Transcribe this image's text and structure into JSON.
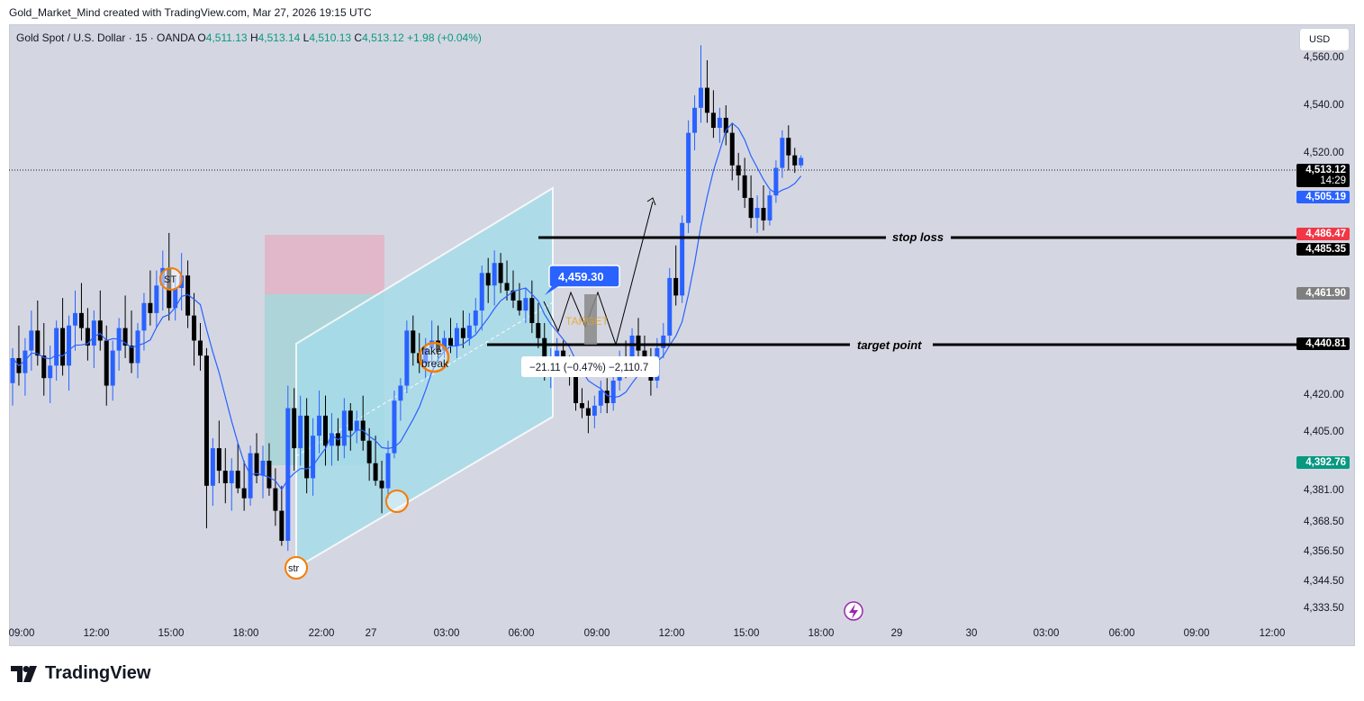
{
  "header": {
    "credit": "Gold_Market_Mind created with TradingView.com, Mar 27, 2026 19:15 UTC"
  },
  "legend": {
    "symbol": "Gold Spot / U.S. Dollar · 15 · OANDA",
    "o_label": "O",
    "o": "4,511.13",
    "h_label": "H",
    "h": "4,513.14",
    "l_label": "L",
    "l": "4,510.13",
    "c_label": "C",
    "c": "4,513.12",
    "change": "+1.98 (+0.04%)"
  },
  "currency_button": "USD",
  "price_axis": [
    "4,560.00",
    "4,540.00",
    "4,520.00",
    "4,420.00",
    "4,405.00",
    "4,381.00",
    "4,368.50",
    "4,356.50",
    "4,344.50",
    "4,333.50"
  ],
  "price_labels": {
    "last": "4,513.12",
    "countdown": "14:29",
    "ma": "4,505.19",
    "red": "4,486.47",
    "stop": "4,485.35",
    "grey": "4,461.90",
    "target": "4,440.81",
    "green": "4,392.76"
  },
  "time_axis": [
    "09:00",
    "12:00",
    "15:00",
    "18:00",
    "22:00",
    "27",
    "03:00",
    "06:00",
    "09:00",
    "12:00",
    "15:00",
    "18:00",
    "29",
    "30",
    "03:00",
    "06:00",
    "09:00",
    "12:00"
  ],
  "annotations": {
    "stop_loss": "stop loss",
    "target_point": "target point",
    "price_callout": "4,459.30",
    "measure": "−21.11 (−0.47%) −2,110.7",
    "target_text": "TARGET",
    "fake_break_1": "fake",
    "fake_break_2": "break",
    "st": "ST",
    "str": "str"
  },
  "footer": {
    "brand": "TradingView"
  },
  "colors": {
    "up": "#2962ff",
    "down": "#000000",
    "ma": "#2962ff",
    "channel": "#a5dcea",
    "stop_zone": "#e6b6c4",
    "target_zone": "#a9d8d8"
  },
  "chart_data": {
    "type": "candlestick",
    "symbol": "XAUUSD",
    "interval": "15",
    "ylim": [
      4328,
      4566
    ],
    "candles": [
      {
        "o": 4423,
        "h": 4437,
        "l": 4414,
        "c": 4433
      },
      {
        "o": 4433,
        "h": 4446,
        "l": 4422,
        "c": 4427
      },
      {
        "o": 4427,
        "h": 4441,
        "l": 4418,
        "c": 4436
      },
      {
        "o": 4436,
        "h": 4452,
        "l": 4428,
        "c": 4444
      },
      {
        "o": 4444,
        "h": 4456,
        "l": 4430,
        "c": 4434
      },
      {
        "o": 4434,
        "h": 4447,
        "l": 4418,
        "c": 4425
      },
      {
        "o": 4425,
        "h": 4438,
        "l": 4415,
        "c": 4430
      },
      {
        "o": 4430,
        "h": 4448,
        "l": 4424,
        "c": 4445
      },
      {
        "o": 4445,
        "h": 4457,
        "l": 4426,
        "c": 4430
      },
      {
        "o": 4430,
        "h": 4450,
        "l": 4420,
        "c": 4446
      },
      {
        "o": 4446,
        "h": 4460,
        "l": 4436,
        "c": 4451
      },
      {
        "o": 4451,
        "h": 4463,
        "l": 4440,
        "c": 4445
      },
      {
        "o": 4445,
        "h": 4453,
        "l": 4432,
        "c": 4438
      },
      {
        "o": 4438,
        "h": 4452,
        "l": 4429,
        "c": 4448
      },
      {
        "o": 4448,
        "h": 4460,
        "l": 4436,
        "c": 4440
      },
      {
        "o": 4440,
        "h": 4446,
        "l": 4414,
        "c": 4422
      },
      {
        "o": 4422,
        "h": 4440,
        "l": 4416,
        "c": 4436
      },
      {
        "o": 4436,
        "h": 4449,
        "l": 4428,
        "c": 4445
      },
      {
        "o": 4445,
        "h": 4458,
        "l": 4433,
        "c": 4438
      },
      {
        "o": 4438,
        "h": 4452,
        "l": 4427,
        "c": 4431
      },
      {
        "o": 4431,
        "h": 4447,
        "l": 4425,
        "c": 4444
      },
      {
        "o": 4444,
        "h": 4459,
        "l": 4436,
        "c": 4455
      },
      {
        "o": 4455,
        "h": 4468,
        "l": 4446,
        "c": 4451
      },
      {
        "o": 4451,
        "h": 4468,
        "l": 4445,
        "c": 4462
      },
      {
        "o": 4462,
        "h": 4476,
        "l": 4452,
        "c": 4469
      },
      {
        "o": 4469,
        "h": 4483,
        "l": 4448,
        "c": 4453
      },
      {
        "o": 4453,
        "h": 4465,
        "l": 4448,
        "c": 4461
      },
      {
        "o": 4461,
        "h": 4475,
        "l": 4452,
        "c": 4466
      },
      {
        "o": 4466,
        "h": 4472,
        "l": 4445,
        "c": 4450
      },
      {
        "o": 4450,
        "h": 4459,
        "l": 4430,
        "c": 4440
      },
      {
        "o": 4440,
        "h": 4447,
        "l": 4428,
        "c": 4434
      },
      {
        "o": 4434,
        "h": 4437,
        "l": 4365,
        "c": 4382
      },
      {
        "o": 4382,
        "h": 4401,
        "l": 4374,
        "c": 4397
      },
      {
        "o": 4397,
        "h": 4408,
        "l": 4383,
        "c": 4388
      },
      {
        "o": 4388,
        "h": 4397,
        "l": 4375,
        "c": 4383
      },
      {
        "o": 4383,
        "h": 4393,
        "l": 4372,
        "c": 4388
      },
      {
        "o": 4388,
        "h": 4399,
        "l": 4379,
        "c": 4381
      },
      {
        "o": 4381,
        "h": 4392,
        "l": 4372,
        "c": 4377
      },
      {
        "o": 4377,
        "h": 4398,
        "l": 4374,
        "c": 4395
      },
      {
        "o": 4395,
        "h": 4403,
        "l": 4383,
        "c": 4386
      },
      {
        "o": 4386,
        "h": 4398,
        "l": 4377,
        "c": 4392
      },
      {
        "o": 4392,
        "h": 4399,
        "l": 4378,
        "c": 4381
      },
      {
        "o": 4381,
        "h": 4389,
        "l": 4366,
        "c": 4372
      },
      {
        "o": 4372,
        "h": 4382,
        "l": 4358,
        "c": 4360
      },
      {
        "o": 4360,
        "h": 4422,
        "l": 4356,
        "c": 4413
      },
      {
        "o": 4413,
        "h": 4421,
        "l": 4388,
        "c": 4397
      },
      {
        "o": 4397,
        "h": 4418,
        "l": 4390,
        "c": 4410
      },
      {
        "o": 4410,
        "h": 4417,
        "l": 4379,
        "c": 4385
      },
      {
        "o": 4385,
        "h": 4409,
        "l": 4378,
        "c": 4402
      },
      {
        "o": 4402,
        "h": 4420,
        "l": 4395,
        "c": 4410
      },
      {
        "o": 4410,
        "h": 4418,
        "l": 4390,
        "c": 4398
      },
      {
        "o": 4398,
        "h": 4411,
        "l": 4390,
        "c": 4403
      },
      {
        "o": 4403,
        "h": 4409,
        "l": 4392,
        "c": 4398
      },
      {
        "o": 4398,
        "h": 4417,
        "l": 4393,
        "c": 4412
      },
      {
        "o": 4412,
        "h": 4415,
        "l": 4396,
        "c": 4404
      },
      {
        "o": 4404,
        "h": 4412,
        "l": 4399,
        "c": 4408
      },
      {
        "o": 4408,
        "h": 4418,
        "l": 4396,
        "c": 4400
      },
      {
        "o": 4400,
        "h": 4405,
        "l": 4384,
        "c": 4391
      },
      {
        "o": 4391,
        "h": 4402,
        "l": 4382,
        "c": 4384
      },
      {
        "o": 4384,
        "h": 4392,
        "l": 4371,
        "c": 4381
      },
      {
        "o": 4381,
        "h": 4400,
        "l": 4377,
        "c": 4395
      },
      {
        "o": 4395,
        "h": 4420,
        "l": 4393,
        "c": 4416
      },
      {
        "o": 4416,
        "h": 4425,
        "l": 4408,
        "c": 4422
      },
      {
        "o": 4422,
        "h": 4448,
        "l": 4419,
        "c": 4444
      },
      {
        "o": 4444,
        "h": 4450,
        "l": 4430,
        "c": 4435
      },
      {
        "o": 4435,
        "h": 4443,
        "l": 4427,
        "c": 4431
      },
      {
        "o": 4431,
        "h": 4441,
        "l": 4425,
        "c": 4437
      },
      {
        "o": 4437,
        "h": 4448,
        "l": 4430,
        "c": 4440
      },
      {
        "o": 4440,
        "h": 4446,
        "l": 4432,
        "c": 4436
      },
      {
        "o": 4436,
        "h": 4444,
        "l": 4433,
        "c": 4441
      },
      {
        "o": 4441,
        "h": 4449,
        "l": 4435,
        "c": 4438
      },
      {
        "o": 4438,
        "h": 4447,
        "l": 4433,
        "c": 4445
      },
      {
        "o": 4445,
        "h": 4452,
        "l": 4437,
        "c": 4441
      },
      {
        "o": 4441,
        "h": 4451,
        "l": 4438,
        "c": 4446
      },
      {
        "o": 4446,
        "h": 4457,
        "l": 4443,
        "c": 4452
      },
      {
        "o": 4452,
        "h": 4470,
        "l": 4444,
        "c": 4467
      },
      {
        "o": 4467,
        "h": 4473,
        "l": 4455,
        "c": 4462
      },
      {
        "o": 4462,
        "h": 4476,
        "l": 4454,
        "c": 4471
      },
      {
        "o": 4471,
        "h": 4475,
        "l": 4459,
        "c": 4463
      },
      {
        "o": 4463,
        "h": 4472,
        "l": 4456,
        "c": 4460
      },
      {
        "o": 4460,
        "h": 4468,
        "l": 4453,
        "c": 4456
      },
      {
        "o": 4456,
        "h": 4463,
        "l": 4450,
        "c": 4452
      },
      {
        "o": 4452,
        "h": 4461,
        "l": 4447,
        "c": 4457
      },
      {
        "o": 4457,
        "h": 4464,
        "l": 4443,
        "c": 4447
      },
      {
        "o": 4447,
        "h": 4455,
        "l": 4437,
        "c": 4441
      },
      {
        "o": 4441,
        "h": 4447,
        "l": 4424,
        "c": 4428
      },
      {
        "o": 4428,
        "h": 4437,
        "l": 4421,
        "c": 4432
      },
      {
        "o": 4432,
        "h": 4441,
        "l": 4428,
        "c": 4436
      },
      {
        "o": 4436,
        "h": 4440,
        "l": 4427,
        "c": 4431
      },
      {
        "o": 4431,
        "h": 4434,
        "l": 4422,
        "c": 4427
      },
      {
        "o": 4427,
        "h": 4431,
        "l": 4412,
        "c": 4415
      },
      {
        "o": 4415,
        "h": 4421,
        "l": 4409,
        "c": 4413
      },
      {
        "o": 4413,
        "h": 4416,
        "l": 4403,
        "c": 4410
      },
      {
        "o": 4410,
        "h": 4418,
        "l": 4405,
        "c": 4414
      },
      {
        "o": 4414,
        "h": 4424,
        "l": 4411,
        "c": 4420
      },
      {
        "o": 4420,
        "h": 4425,
        "l": 4411,
        "c": 4415
      },
      {
        "o": 4415,
        "h": 4428,
        "l": 4412,
        "c": 4424
      },
      {
        "o": 4424,
        "h": 4436,
        "l": 4420,
        "c": 4431
      },
      {
        "o": 4431,
        "h": 4440,
        "l": 4425,
        "c": 4428
      },
      {
        "o": 4428,
        "h": 4445,
        "l": 4426,
        "c": 4442
      },
      {
        "o": 4442,
        "h": 4449,
        "l": 4432,
        "c": 4436
      },
      {
        "o": 4436,
        "h": 4442,
        "l": 4427,
        "c": 4431
      },
      {
        "o": 4431,
        "h": 4437,
        "l": 4418,
        "c": 4424
      },
      {
        "o": 4424,
        "h": 4441,
        "l": 4421,
        "c": 4437
      },
      {
        "o": 4437,
        "h": 4447,
        "l": 4433,
        "c": 4442
      },
      {
        "o": 4442,
        "h": 4469,
        "l": 4439,
        "c": 4465
      },
      {
        "o": 4465,
        "h": 4478,
        "l": 4454,
        "c": 4458
      },
      {
        "o": 4458,
        "h": 4490,
        "l": 4455,
        "c": 4487
      },
      {
        "o": 4487,
        "h": 4528,
        "l": 4483,
        "c": 4523
      },
      {
        "o": 4523,
        "h": 4538,
        "l": 4516,
        "c": 4533
      },
      {
        "o": 4533,
        "h": 4558,
        "l": 4527,
        "c": 4541
      },
      {
        "o": 4541,
        "h": 4552,
        "l": 4527,
        "c": 4531
      },
      {
        "o": 4531,
        "h": 4540,
        "l": 4521,
        "c": 4525
      },
      {
        "o": 4525,
        "h": 4533,
        "l": 4519,
        "c": 4529
      },
      {
        "o": 4529,
        "h": 4534,
        "l": 4518,
        "c": 4523
      },
      {
        "o": 4523,
        "h": 4527,
        "l": 4504,
        "c": 4510
      },
      {
        "o": 4510,
        "h": 4515,
        "l": 4500,
        "c": 4506
      },
      {
        "o": 4506,
        "h": 4513,
        "l": 4493,
        "c": 4497
      },
      {
        "o": 4497,
        "h": 4506,
        "l": 4485,
        "c": 4489
      },
      {
        "o": 4489,
        "h": 4498,
        "l": 4483,
        "c": 4493
      },
      {
        "o": 4493,
        "h": 4502,
        "l": 4484,
        "c": 4488
      },
      {
        "o": 4488,
        "h": 4500,
        "l": 4486,
        "c": 4498
      },
      {
        "o": 4498,
        "h": 4512,
        "l": 4495,
        "c": 4509
      },
      {
        "o": 4509,
        "h": 4524,
        "l": 4505,
        "c": 4521
      },
      {
        "o": 4521,
        "h": 4526,
        "l": 4508,
        "c": 4514
      },
      {
        "o": 4514,
        "h": 4517,
        "l": 4507,
        "c": 4510
      },
      {
        "o": 4510,
        "h": 4514,
        "l": 4509,
        "c": 4513
      }
    ]
  }
}
